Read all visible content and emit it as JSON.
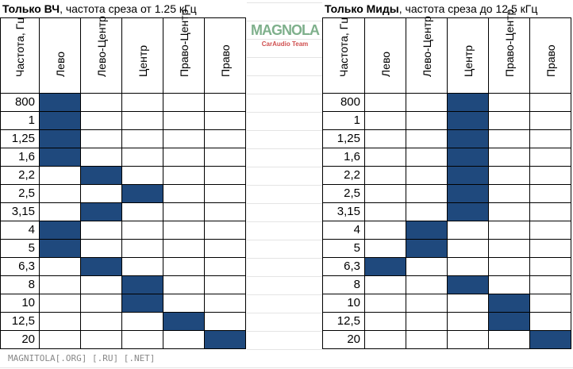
{
  "tables": [
    {
      "title_bold": "Только ВЧ",
      "title_rest": ", частота среза от 1.25 кГц",
      "headers": [
        "Частота, Гц",
        "Лево",
        "Лево-Центр",
        "Центр",
        "Право-Центр",
        "Право"
      ],
      "rows": [
        [
          "800",
          0
        ],
        [
          "1",
          0
        ],
        [
          "1,25",
          0
        ],
        [
          "1,6",
          0
        ],
        [
          "2,2",
          1
        ],
        [
          "2,5",
          2
        ],
        [
          "3,15",
          1
        ],
        [
          "4",
          0
        ],
        [
          "5",
          0
        ],
        [
          "6,3",
          1
        ],
        [
          "8",
          2
        ],
        [
          "10",
          2
        ],
        [
          "12,5",
          3
        ],
        [
          "20",
          4
        ]
      ]
    },
    {
      "title_bold": "Только Миды",
      "title_rest": ", частота среза до 12,5 кГц",
      "headers": [
        "Частота, Гц",
        "Лево",
        "Лево-Центр",
        "Центр",
        "Право-Центр",
        "Право"
      ],
      "rows": [
        [
          "800",
          2
        ],
        [
          "1",
          2
        ],
        [
          "1,25",
          2
        ],
        [
          "1,6",
          2
        ],
        [
          "2,2",
          2
        ],
        [
          "2,5",
          2
        ],
        [
          "3,15",
          2
        ],
        [
          "4",
          1
        ],
        [
          "5",
          1
        ],
        [
          "6,3",
          0
        ],
        [
          "8",
          2
        ],
        [
          "10",
          3
        ],
        [
          "12,5",
          3
        ],
        [
          "20",
          4
        ]
      ]
    }
  ],
  "fill_color": "#1f497d",
  "watermark": "MAGNITOLA[.ORG] [.RU] [.NET]",
  "logo": {
    "name": "MAGNOLA",
    "sub": "CarAudio Team"
  }
}
